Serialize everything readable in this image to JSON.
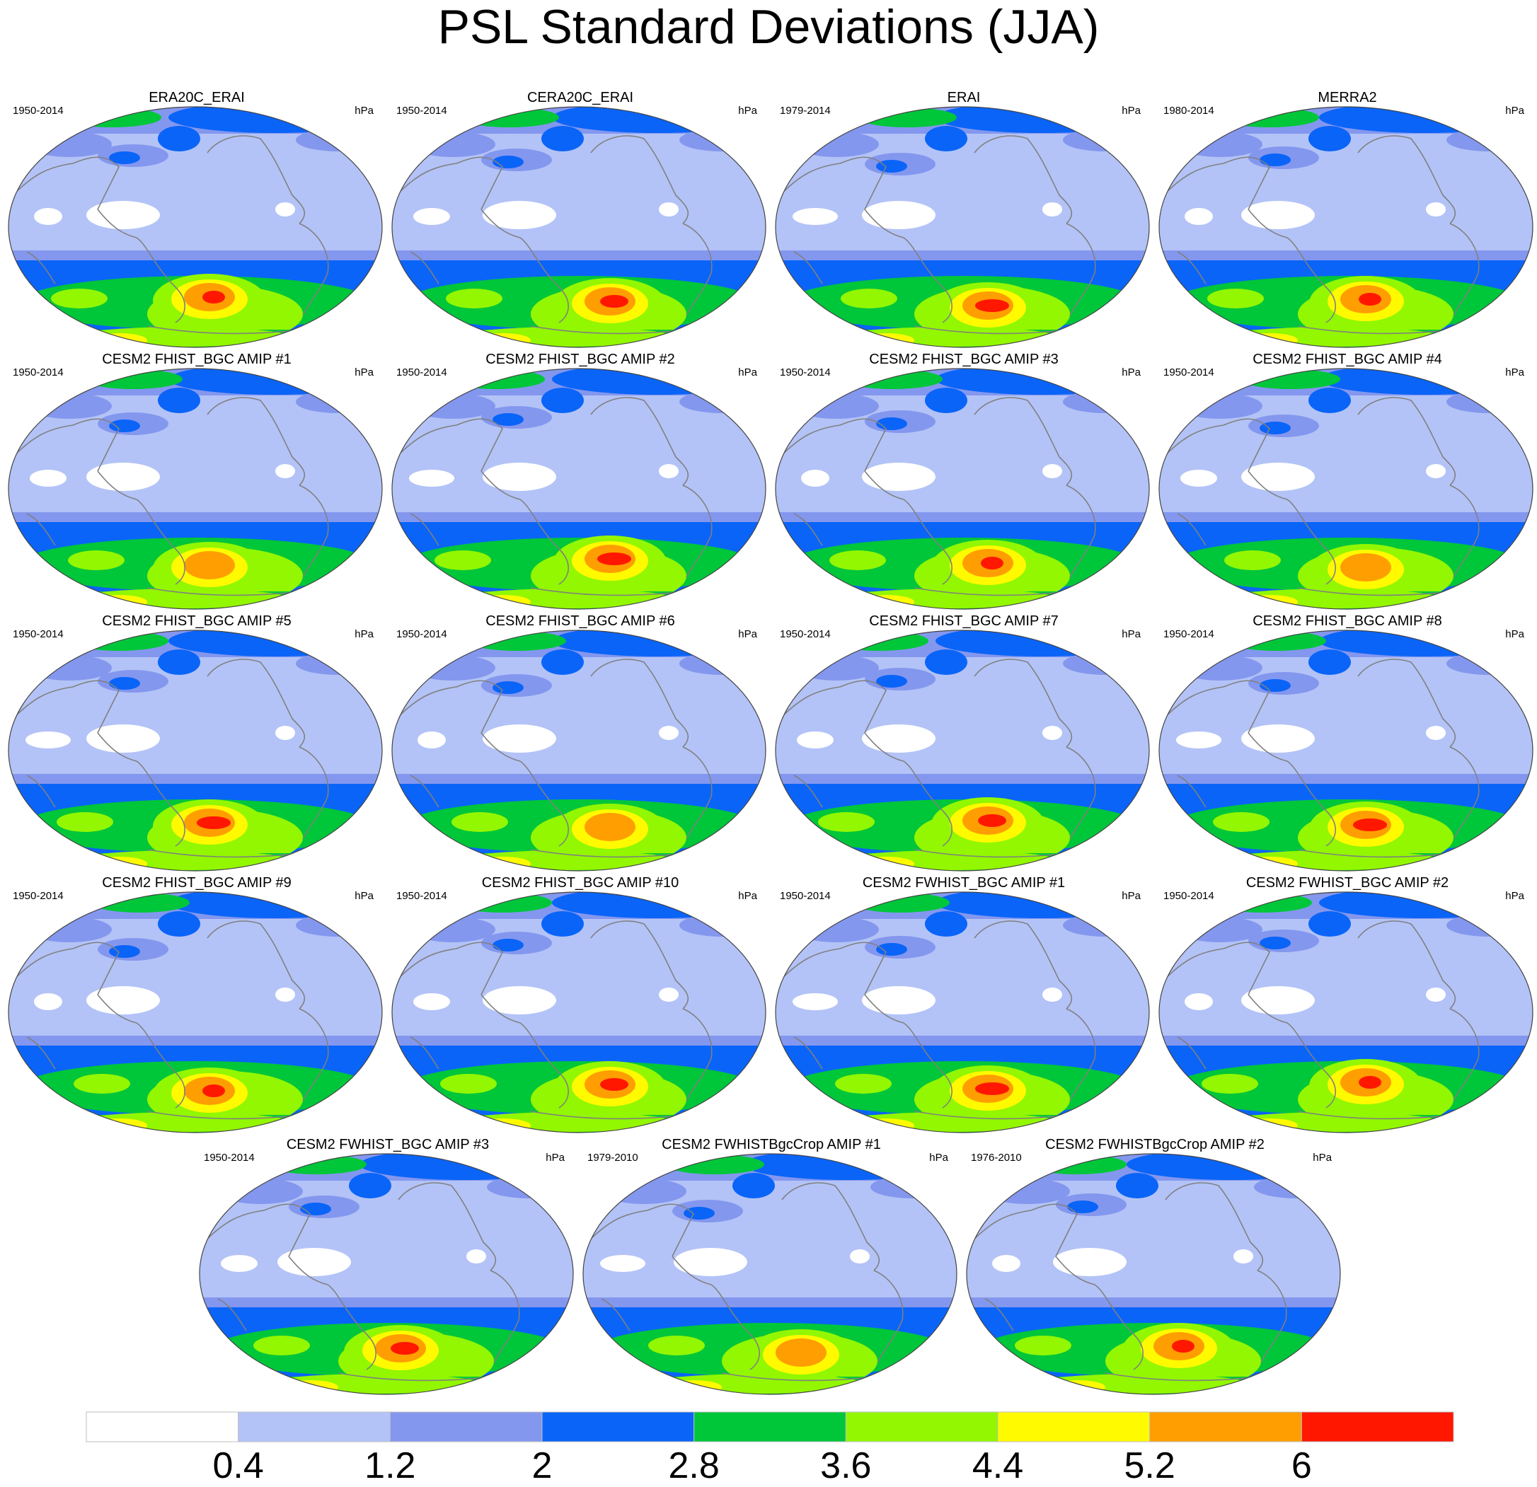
{
  "figure_title": "PSL Standard Deviations (JJA)",
  "panels": [
    {
      "title": "ERA20C_ERAI",
      "period": "1950-2014",
      "unit": "hPa",
      "max_level": 6
    },
    {
      "title": "CERA20C_ERAI",
      "period": "1950-2014",
      "unit": "hPa",
      "max_level": 6
    },
    {
      "title": "ERAI",
      "period": "1979-2014",
      "unit": "hPa",
      "max_level": 6
    },
    {
      "title": "MERRA2",
      "period": "1980-2014",
      "unit": "hPa",
      "max_level": 6
    },
    {
      "title": "CESM2 FHIST_BGC AMIP #1",
      "period": "1950-2014",
      "unit": "hPa",
      "max_level": 5
    },
    {
      "title": "CESM2 FHIST_BGC AMIP #2",
      "period": "1950-2014",
      "unit": "hPa",
      "max_level": 6
    },
    {
      "title": "CESM2 FHIST_BGC AMIP #3",
      "period": "1950-2014",
      "unit": "hPa",
      "max_level": 6
    },
    {
      "title": "CESM2 FHIST_BGC AMIP #4",
      "period": "1950-2014",
      "unit": "hPa",
      "max_level": 5
    },
    {
      "title": "CESM2 FHIST_BGC AMIP #5",
      "period": "1950-2014",
      "unit": "hPa",
      "max_level": 6
    },
    {
      "title": "CESM2 FHIST_BGC AMIP #6",
      "period": "1950-2014",
      "unit": "hPa",
      "max_level": 5
    },
    {
      "title": "CESM2 FHIST_BGC AMIP #7",
      "period": "1950-2014",
      "unit": "hPa",
      "max_level": 6
    },
    {
      "title": "CESM2 FHIST_BGC AMIP #8",
      "period": "1950-2014",
      "unit": "hPa",
      "max_level": 6
    },
    {
      "title": "CESM2 FHIST_BGC AMIP #9",
      "period": "1950-2014",
      "unit": "hPa",
      "max_level": 6
    },
    {
      "title": "CESM2 FHIST_BGC AMIP #10",
      "period": "1950-2014",
      "unit": "hPa",
      "max_level": 6
    },
    {
      "title": "CESM2 FWHIST_BGC AMIP #1",
      "period": "1950-2014",
      "unit": "hPa",
      "max_level": 6
    },
    {
      "title": "CESM2 FWHIST_BGC AMIP #2",
      "period": "1950-2014",
      "unit": "hPa",
      "max_level": 6
    },
    {
      "title": "CESM2 FWHIST_BGC AMIP #3",
      "period": "1950-2014",
      "unit": "hPa",
      "max_level": 6
    },
    {
      "title": "CESM2 FWHISTBgcCrop AMIP #1",
      "period": "1979-2010",
      "unit": "hPa",
      "max_level": 5
    },
    {
      "title": "CESM2 FWHISTBgcCrop AMIP #2",
      "period": "1976-2010",
      "unit": "hPa",
      "max_level": 6
    }
  ],
  "colorbar": {
    "labels": [
      "0.4",
      "1.2",
      "2",
      "2.8",
      "3.6",
      "4.4",
      "5.2",
      "6"
    ],
    "colors": [
      "#ffffff",
      "#b3c3f7",
      "#8497ee",
      "#0a64f8",
      "#00c63a",
      "#92f700",
      "#fffa00",
      "#ff9e00",
      "#ff1700"
    ]
  },
  "land_outline_color": "#808080"
}
